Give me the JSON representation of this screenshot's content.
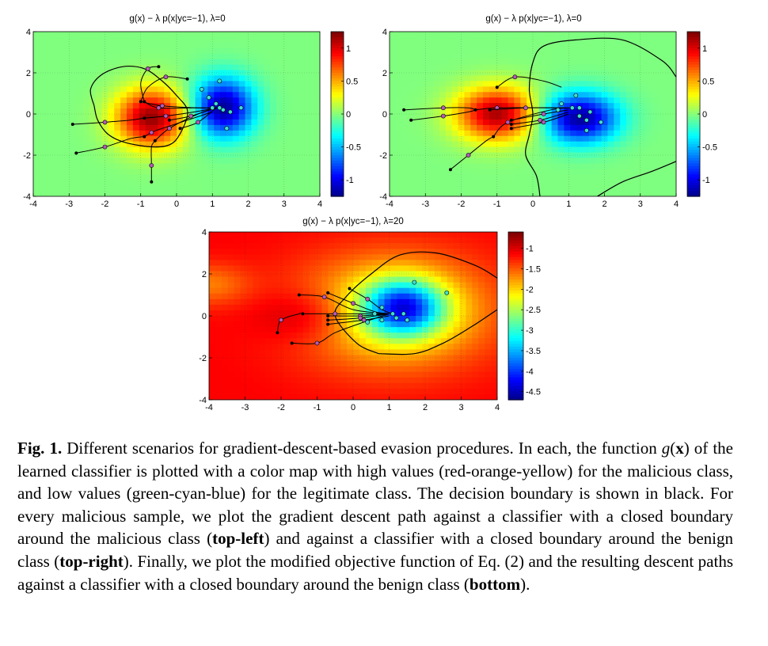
{
  "chart_data": [
    {
      "id": "top-left",
      "type": "heatmap",
      "title": "g(x) − λ p(x|yc=−1), λ=0",
      "xlim": [
        -4,
        4
      ],
      "ylim": [
        -4,
        4
      ],
      "xticks": [
        -4,
        -3,
        -2,
        -1,
        0,
        1,
        2,
        3,
        4
      ],
      "yticks": [
        -4,
        -2,
        0,
        2,
        4
      ],
      "colorbar": {
        "range": [
          -1.25,
          1.25
        ],
        "ticks": [
          1,
          0.5,
          0,
          -0.5,
          -1
        ]
      },
      "grid": true,
      "malicious_class_center": [
        -0.7,
        -0.2
      ],
      "benign_class_center": [
        1.3,
        0.3
      ],
      "benign_points": [
        [
          1.2,
          1.6
        ],
        [
          1.1,
          0.5
        ],
        [
          0.7,
          1.2
        ],
        [
          1.3,
          0.2
        ],
        [
          1.5,
          0.1
        ],
        [
          1.8,
          0.3
        ],
        [
          1.4,
          -0.7
        ],
        [
          0.9,
          0.8
        ],
        [
          1.0,
          0.3
        ],
        [
          1.2,
          0.3
        ]
      ],
      "paths": [
        [
          [
            -2.8,
            -1.9
          ],
          [
            -2,
            -1.6
          ],
          [
            -1.3,
            -1.2
          ],
          [
            -0.9,
            -1.1
          ]
        ],
        [
          [
            -2.9,
            -0.5
          ],
          [
            -2,
            -0.4
          ],
          [
            -1.3,
            -0.3
          ],
          [
            -0.9,
            -0.2
          ]
        ],
        [
          [
            -0.5,
            2.3
          ],
          [
            -0.8,
            2.2
          ],
          [
            -1,
            1.5
          ],
          [
            -0.9,
            0.6
          ]
        ],
        [
          [
            -0.7,
            -3.3
          ],
          [
            -0.7,
            -2.5
          ],
          [
            -0.7,
            -1.6
          ],
          [
            -0.6,
            -1.3
          ]
        ],
        [
          [
            0.3,
            1.7
          ],
          [
            -0.3,
            1.8
          ],
          [
            -0.8,
            1.3
          ],
          [
            -1,
            0.6
          ]
        ],
        [
          [
            -0.9,
            -1.1
          ],
          [
            -0.7,
            -0.9
          ],
          [
            -0.4,
            -0.7
          ],
          [
            1,
            0.1
          ]
        ],
        [
          [
            -0.9,
            -0.2
          ],
          [
            -0.3,
            -0.1
          ],
          [
            0.5,
            0.1
          ],
          [
            1.1,
            0.3
          ]
        ],
        [
          [
            -0.6,
            -1.3
          ],
          [
            -0.2,
            -0.7
          ],
          [
            0.6,
            0
          ],
          [
            1.1,
            0.3
          ]
        ],
        [
          [
            -0.9,
            0.6
          ],
          [
            -0.5,
            0.3
          ],
          [
            0.5,
            0.3
          ],
          [
            1.2,
            0.3
          ]
        ],
        [
          [
            -1,
            0.6
          ],
          [
            -0.4,
            0.4
          ],
          [
            0.6,
            0.3
          ],
          [
            1.1,
            0.3
          ]
        ],
        [
          [
            -0.2,
            -0.3
          ],
          [
            0.4,
            -0.1
          ],
          [
            1.1,
            0.3
          ]
        ],
        [
          [
            0.1,
            -0.7
          ],
          [
            0.6,
            -0.4
          ],
          [
            1.1,
            0.3
          ]
        ]
      ],
      "boundary": "closed around malicious class"
    },
    {
      "id": "top-right",
      "type": "heatmap",
      "title": "g(x) − λ p(x|yc=−1), λ=0",
      "xlim": [
        -4,
        4
      ],
      "ylim": [
        -4,
        4
      ],
      "xticks": [
        -4,
        -3,
        -2,
        -1,
        0,
        1,
        2,
        3,
        4
      ],
      "yticks": [
        -4,
        -2,
        0,
        2,
        4
      ],
      "colorbar": {
        "range": [
          -1.25,
          1.25
        ],
        "ticks": [
          1,
          0.5,
          0,
          -0.5,
          -1
        ]
      },
      "grid": true,
      "malicious_class_center": [
        -1.0,
        0.0
      ],
      "benign_class_center": [
        1.3,
        -0.2
      ],
      "benign_points": [
        [
          1.2,
          0.9
        ],
        [
          0.8,
          0.5
        ],
        [
          1.1,
          0.3
        ],
        [
          1.3,
          0.3
        ],
        [
          1.6,
          0.1
        ],
        [
          1.5,
          -0.3
        ],
        [
          1.9,
          -0.4
        ],
        [
          1.5,
          -0.8
        ],
        [
          0.7,
          0.2
        ],
        [
          1.3,
          -0.1
        ]
      ],
      "paths": [
        [
          [
            -3.6,
            0.2
          ],
          [
            -2.5,
            0.3
          ],
          [
            -1.8,
            0.3
          ],
          [
            -1.6,
            0.2
          ]
        ],
        [
          [
            -3.4,
            -0.3
          ],
          [
            -2.5,
            -0.1
          ],
          [
            -1.8,
            0.1
          ],
          [
            -1.6,
            0.2
          ]
        ],
        [
          [
            -2.3,
            -2.7
          ],
          [
            -1.8,
            -2
          ],
          [
            -1.3,
            -1.3
          ],
          [
            -1.1,
            -1.1
          ]
        ],
        [
          [
            -1,
            1.3
          ],
          [
            -0.5,
            1.8
          ],
          [
            0.3,
            1.6
          ],
          [
            0.8,
            1.3
          ]
        ],
        [
          [
            -1.6,
            0.2
          ],
          [
            -1,
            0.3
          ],
          [
            0.5,
            0.3
          ],
          [
            1.1,
            0.3
          ]
        ],
        [
          [
            -1.1,
            -1.1
          ],
          [
            -0.7,
            -0.4
          ],
          [
            0.5,
            0.2
          ],
          [
            1,
            0.3
          ]
        ],
        [
          [
            -1.2,
            0.2
          ],
          [
            -0.2,
            0.3
          ],
          [
            0.9,
            0.3
          ]
        ],
        [
          [
            -0.6,
            -0.3
          ],
          [
            0.3,
            0
          ],
          [
            1,
            0.2
          ]
        ],
        [
          [
            -0.6,
            -0.5
          ],
          [
            0.2,
            -0.3
          ],
          [
            1,
            0.1
          ]
        ],
        [
          [
            -0.6,
            -0.7
          ],
          [
            0.3,
            -0.4
          ],
          [
            1,
            0
          ]
        ]
      ],
      "boundary": "closed around benign class"
    },
    {
      "id": "bottom",
      "type": "heatmap",
      "title": "g(x) − λ p(x|yc=−1), λ=20",
      "xlim": [
        -4,
        4
      ],
      "ylim": [
        -4,
        4
      ],
      "xticks": [
        -4,
        -3,
        -2,
        -1,
        0,
        1,
        2,
        3,
        4
      ],
      "yticks": [
        -4,
        -2,
        0,
        2,
        4
      ],
      "colorbar": {
        "range": [
          -4.7,
          -0.6
        ],
        "ticks": [
          -1,
          -1.5,
          -2,
          -2.5,
          -3,
          -3.5,
          -4,
          -4.5
        ]
      },
      "grid": true,
      "malicious_class_center": [
        -1.0,
        0.0
      ],
      "benign_class_center": [
        1.3,
        0.3
      ],
      "benign_points": [
        [
          1.7,
          1.6
        ],
        [
          2.6,
          1.1
        ],
        [
          0.8,
          0.4
        ],
        [
          1.1,
          0.1
        ],
        [
          1.4,
          0.1
        ],
        [
          1.5,
          -0.2
        ],
        [
          0.4,
          -0.3
        ],
        [
          1.2,
          -0.1
        ],
        [
          0.8,
          -0.2
        ],
        [
          0.6,
          0.1
        ]
      ],
      "paths": [
        [
          [
            -2.1,
            -0.8
          ],
          [
            -2,
            -0.2
          ],
          [
            -1.5,
            0.1
          ],
          [
            -1.5,
            0.1
          ]
        ],
        [
          [
            -1.7,
            -1.3
          ],
          [
            -1,
            -1.3
          ],
          [
            -0.5,
            -0.8
          ],
          [
            0.3,
            -0.3
          ],
          [
            1.0,
            0.1
          ]
        ],
        [
          [
            -1.5,
            1.0
          ],
          [
            -0.8,
            0.9
          ],
          [
            0,
            0.3
          ],
          [
            1.0,
            0.1
          ]
        ],
        [
          [
            -0.7,
            1.1
          ],
          [
            0,
            0.6
          ],
          [
            0.6,
            0.2
          ],
          [
            1.0,
            0.1
          ]
        ],
        [
          [
            -0.1,
            1.3
          ],
          [
            0.4,
            0.8
          ],
          [
            0.8,
            0.3
          ],
          [
            1.1,
            0.1
          ]
        ],
        [
          [
            -1.4,
            0.1
          ],
          [
            -0.5,
            0.1
          ],
          [
            0.5,
            0.1
          ],
          [
            1.0,
            0.1
          ]
        ],
        [
          [
            -0.7,
            0
          ],
          [
            0.2,
            0
          ],
          [
            1.0,
            0.1
          ]
        ],
        [
          [
            -0.7,
            -0.2
          ],
          [
            0.2,
            -0.1
          ],
          [
            1.0,
            0.1
          ]
        ],
        [
          [
            -0.7,
            -0.4
          ],
          [
            0.3,
            -0.2
          ],
          [
            1.0,
            0
          ]
        ]
      ],
      "boundary": "closed around benign class"
    }
  ],
  "caption": {
    "label": "Fig. 1.",
    "p1": " Different scenarios for gradient-descent-based evasion procedures. In each, the function ",
    "fx": "g",
    "fx_arg_open": "(",
    "fx_arg": "x",
    "fx_arg_close": ")",
    "p2": " of the learned classifier is plotted with a color map with high values (red-orange-yellow) for the malicious class, and low values (green-cyan-blue) for the legitimate class. The decision boundary is shown in black. For every malicious sample, we plot the gradient descent path against a classifier with a closed boundary around the malicious class (",
    "b1": "top-left",
    "p3": ") and against a classifier with a closed boundary around the benign class (",
    "b2": "top-right",
    "p4": "). Finally, we plot the modified objective function of Eq. (2) and the resulting descent paths against a classifier with a closed boundary around the benign class (",
    "b3": "bottom",
    "p5": ")."
  }
}
